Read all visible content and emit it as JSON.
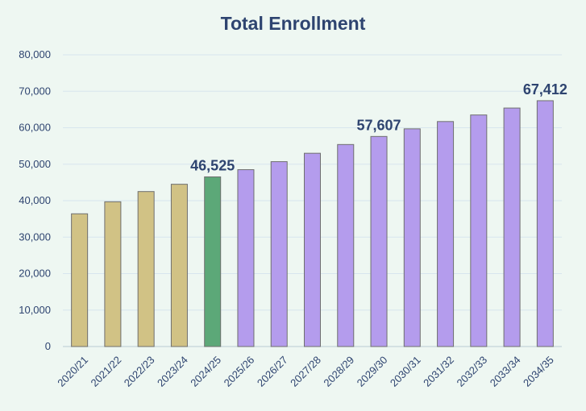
{
  "chart_data": {
    "type": "bar",
    "title": "Total Enrollment",
    "xlabel": "",
    "ylabel": "",
    "ylim": [
      0,
      80000
    ],
    "yticks": [
      0,
      10000,
      20000,
      30000,
      40000,
      50000,
      60000,
      70000,
      80000
    ],
    "ytick_labels": [
      "0",
      "10,000",
      "20,000",
      "30,000",
      "40,000",
      "50,000",
      "60,000",
      "70,000",
      "80,000"
    ],
    "grid": true,
    "legend": "none",
    "categories": [
      "2020/21",
      "2021/22",
      "2022/23",
      "2023/24",
      "2024/25",
      "2025/26",
      "2026/27",
      "2027/28",
      "2028/29",
      "2029/30",
      "2030/31",
      "2031/32",
      "2032/33",
      "2033/34",
      "2034/35"
    ],
    "values": [
      36400,
      39700,
      42500,
      44500,
      46525,
      48500,
      50700,
      53000,
      55400,
      57607,
      59700,
      61700,
      63500,
      65400,
      67412
    ],
    "bar_colors": [
      "#d1c285",
      "#d1c285",
      "#d1c285",
      "#d1c285",
      "#5ca878",
      "#b49ced",
      "#b49ced",
      "#b49ced",
      "#b49ced",
      "#b49ced",
      "#b49ced",
      "#b49ced",
      "#b49ced",
      "#b49ced",
      "#b49ced"
    ],
    "data_labels": [
      {
        "category": "2024/25",
        "text": "46,525"
      },
      {
        "category": "2029/30",
        "text": "57,607"
      },
      {
        "category": "2034/35",
        "text": "67,412"
      }
    ],
    "colors": {
      "background": "#eef7f2",
      "grid": "#d7e6ee",
      "text": "#2e4470",
      "bar_outline": "#6f6f6f"
    }
  }
}
